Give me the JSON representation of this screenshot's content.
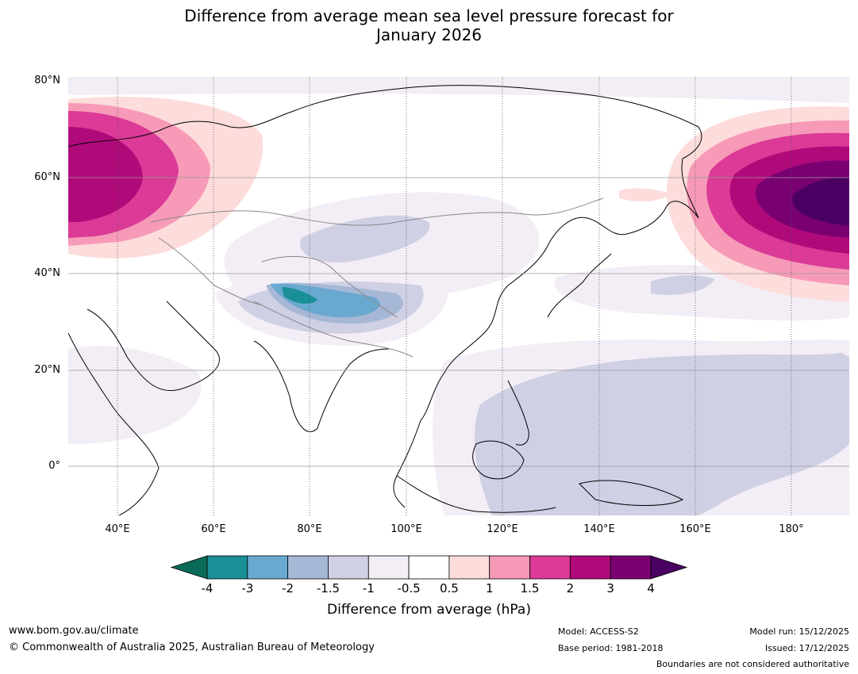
{
  "title_line1": "Difference from average mean sea level pressure forecast for",
  "title_line2": "January 2026",
  "map": {
    "latitude_labels": [
      "80°N",
      "60°N",
      "40°N",
      "20°N",
      "0°"
    ],
    "longitude_labels": [
      "40°E",
      "60°E",
      "80°E",
      "100°E",
      "120°E",
      "140°E",
      "160°E",
      "180°"
    ]
  },
  "colorbar": {
    "ticks": [
      "-4",
      "-3",
      "-2",
      "-1.5",
      "-1",
      "-0.5",
      "0.5",
      "1",
      "1.5",
      "2",
      "3",
      "4"
    ],
    "colors": [
      "#0b6b5a",
      "#1a8f98",
      "#6aa9cf",
      "#a7b8d6",
      "#cfd0e4",
      "#f3edf5",
      "#ffffff",
      "#fddcdc",
      "#f79ab7",
      "#db3a97",
      "#b00a7a",
      "#7a0072",
      "#4a0062"
    ],
    "label": "Difference from average (hPa)"
  },
  "footer": {
    "website": "www.bom.gov.au/climate",
    "copyright": "© Commonwealth of Australia 2025, Australian Bureau of Meteorology",
    "model": "Model: ACCESS-S2",
    "base_period": "Base period: 1981-2018",
    "model_run": "Model run: 15/12/2025",
    "issued": "Issued: 17/12/2025",
    "disclaimer": "Boundaries are not considered authoritative"
  }
}
